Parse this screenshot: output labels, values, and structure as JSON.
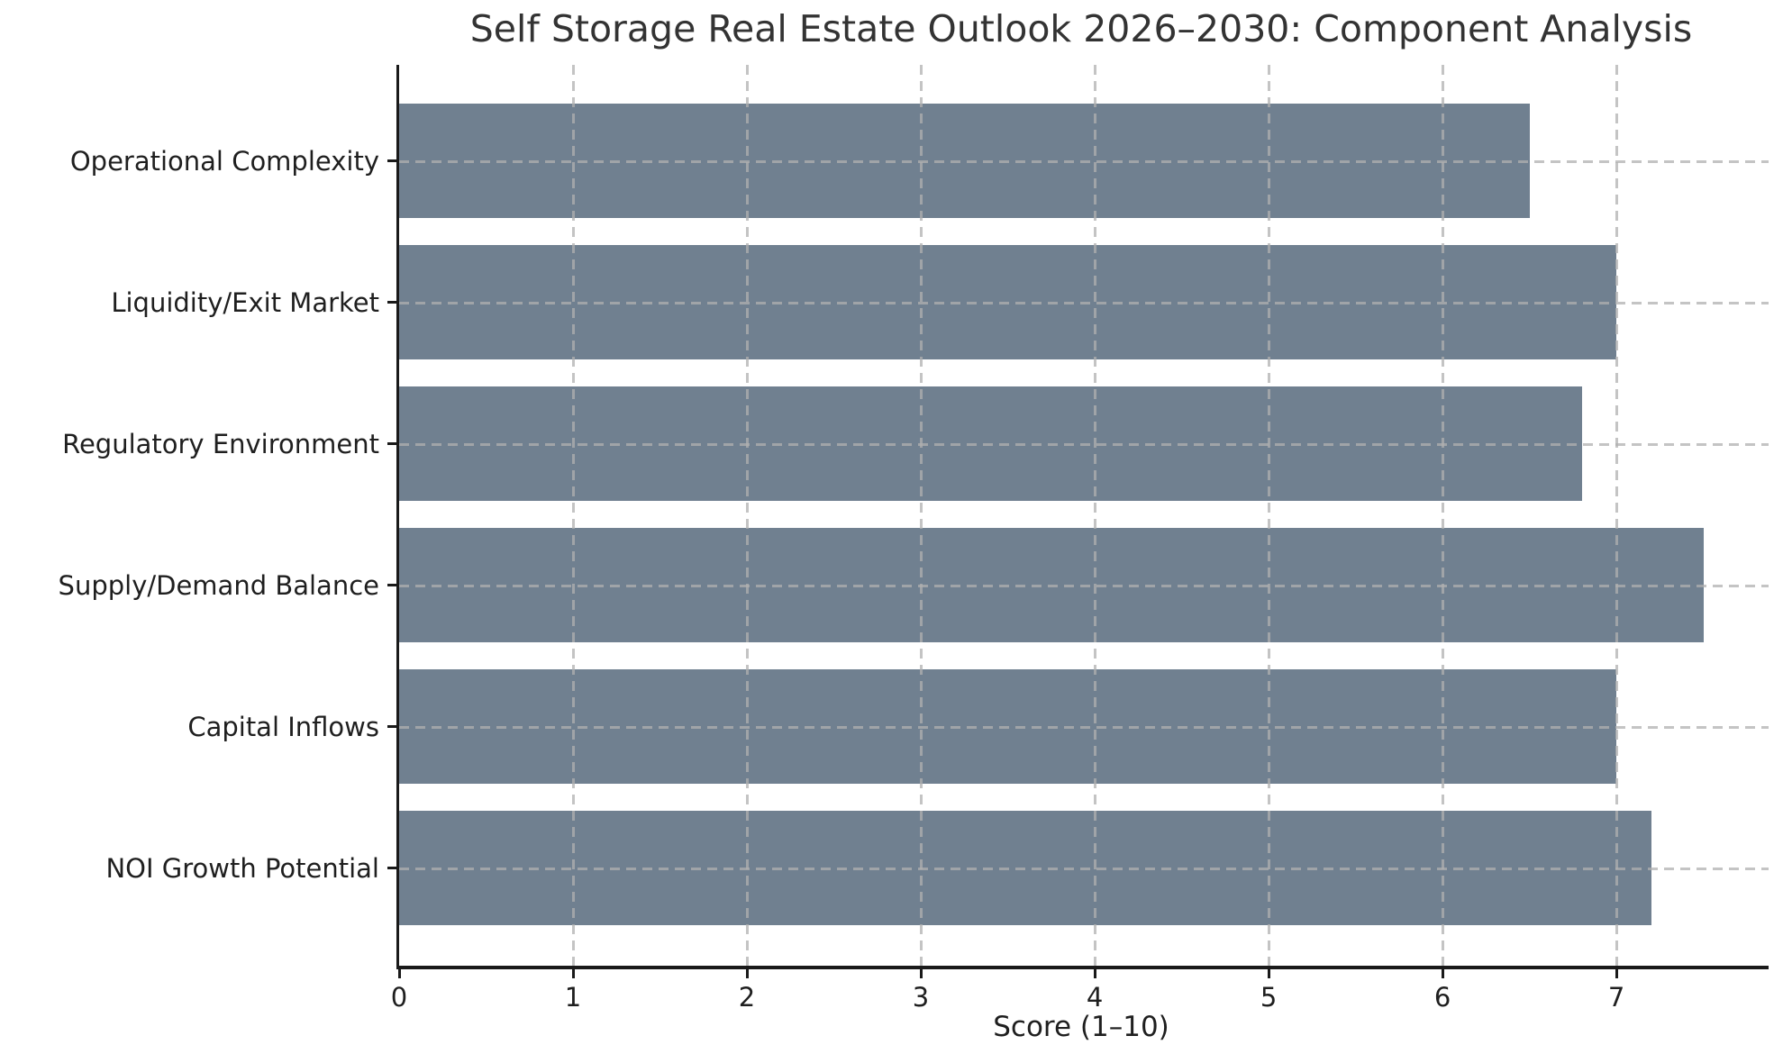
{
  "chart_data": {
    "type": "bar",
    "orientation": "horizontal",
    "title": "Self Storage Real Estate Outlook 2026–2030: Component Analysis",
    "xlabel": "Score (1–10)",
    "ylabel": "",
    "categories_top_to_bottom": [
      "Operational Complexity",
      "Liquidity/Exit Market",
      "Regulatory Environment",
      "Supply/Demand Balance",
      "Capital Inflows",
      "NOI Growth Potential"
    ],
    "values": [
      6.5,
      7.0,
      6.8,
      7.5,
      7.0,
      7.2
    ],
    "xlim": [
      0,
      7.875
    ],
    "xticks": [
      0,
      1,
      2,
      3,
      4,
      5,
      6,
      7
    ],
    "bar_color": "#708090",
    "background_color": "#ffffff",
    "grid": {
      "style": "dashed",
      "axes": "both",
      "color": "#b0b0b0",
      "alpha": 0.75,
      "on_top_of_bars": true
    },
    "legend": "none",
    "spines": [
      "left",
      "bottom"
    ]
  }
}
